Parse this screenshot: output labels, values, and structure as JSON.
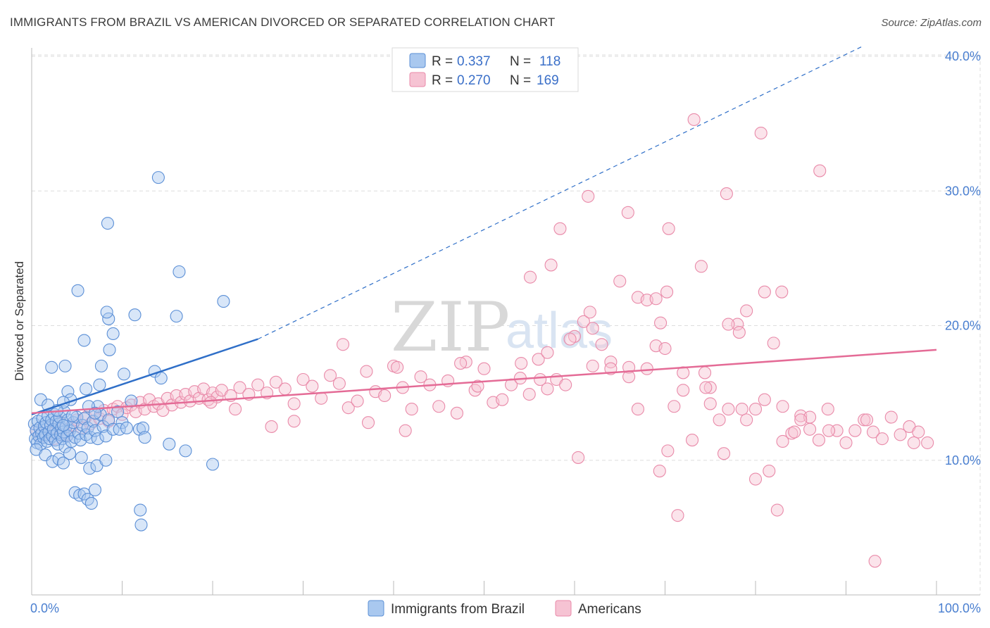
{
  "header": {
    "title": "IMMIGRANTS FROM BRAZIL VS AMERICAN DIVORCED OR SEPARATED CORRELATION CHART",
    "source": "Source: ZipAtlas.com"
  },
  "watermark": {
    "zip": "ZIP",
    "atlas": "atlas"
  },
  "legend": {
    "r_label": "R =",
    "n_label": "N =",
    "rows": [
      {
        "r": "0.337",
        "n": "118"
      },
      {
        "r": "0.270",
        "n": "169"
      }
    ]
  },
  "colors": {
    "brazil_fill": "#a9c8ef",
    "brazil_stroke": "#5b8fd6",
    "brazil_line": "#2f6fc8",
    "americans_fill": "#f6c3d3",
    "americans_stroke": "#e98aa9",
    "americans_line": "#e46b96",
    "tick_text": "#4a7fd0",
    "grid": "#dddddd"
  },
  "chart_data": {
    "type": "scatter",
    "title": "IMMIGRANTS FROM BRAZIL VS AMERICAN DIVORCED OR SEPARATED CORRELATION CHART",
    "xlabel": "",
    "ylabel": "Divorced or Separated",
    "xlim": [
      0,
      100
    ],
    "ylim": [
      0,
      40
    ],
    "x_tick_labels": [
      "0.0%",
      "100.0%"
    ],
    "y_ticks": [
      10,
      20,
      30,
      40
    ],
    "y_tick_labels": [
      "10.0%",
      "20.0%",
      "30.0%",
      "40.0%"
    ],
    "grid": true,
    "legend_position": "top-center",
    "series": [
      {
        "name": "Immigrants from Brazil",
        "r": 0.337,
        "n": 118,
        "trend": {
          "x": [
            0,
            25
          ],
          "y": [
            13.4,
            19.0
          ],
          "dashed_extension": [
            25,
            92
          ],
          "dashed_y": [
            19.0,
            40.8
          ]
        },
        "points": [
          [
            0.3,
            12.7
          ],
          [
            0.4,
            11.6
          ],
          [
            0.5,
            12.2
          ],
          [
            0.6,
            11.3
          ],
          [
            0.7,
            12.9
          ],
          [
            0.8,
            11.8
          ],
          [
            0.9,
            12.4
          ],
          [
            1.0,
            11.2
          ],
          [
            1.1,
            12.0
          ],
          [
            1.2,
            13.1
          ],
          [
            1.3,
            11.7
          ],
          [
            1.4,
            12.5
          ],
          [
            1.5,
            11.9
          ],
          [
            1.6,
            12.8
          ],
          [
            1.7,
            11.4
          ],
          [
            1.8,
            13.3
          ],
          [
            1.9,
            12.1
          ],
          [
            2.0,
            11.6
          ],
          [
            2.1,
            12.6
          ],
          [
            2.2,
            13.0
          ],
          [
            2.3,
            11.8
          ],
          [
            2.4,
            12.3
          ],
          [
            2.5,
            13.4
          ],
          [
            2.6,
            11.5
          ],
          [
            2.7,
            12.9
          ],
          [
            2.8,
            12.0
          ],
          [
            2.9,
            11.2
          ],
          [
            3.0,
            12.7
          ],
          [
            3.1,
            13.2
          ],
          [
            3.2,
            11.9
          ],
          [
            3.3,
            12.4
          ],
          [
            3.4,
            11.6
          ],
          [
            3.5,
            12.1
          ],
          [
            3.6,
            13.6
          ],
          [
            3.7,
            11.0
          ],
          [
            3.8,
            12.5
          ],
          [
            3.9,
            11.8
          ],
          [
            4.0,
            13.0
          ],
          [
            4.2,
            12.2
          ],
          [
            4.4,
            11.4
          ],
          [
            4.6,
            12.8
          ],
          [
            4.8,
            11.7
          ],
          [
            5.0,
            13.2
          ],
          [
            5.2,
            12.0
          ],
          [
            5.4,
            11.5
          ],
          [
            5.6,
            12.6
          ],
          [
            5.8,
            13.1
          ],
          [
            6.0,
            11.9
          ],
          [
            6.2,
            12.4
          ],
          [
            6.5,
            11.7
          ],
          [
            6.8,
            12.9
          ],
          [
            7.0,
            12.2
          ],
          [
            7.3,
            11.6
          ],
          [
            7.6,
            13.4
          ],
          [
            7.9,
            12.5
          ],
          [
            8.2,
            11.8
          ],
          [
            8.5,
            13.0
          ],
          [
            9.0,
            12.3
          ],
          [
            9.5,
            13.6
          ],
          [
            10.0,
            12.8
          ],
          [
            0.5,
            10.8
          ],
          [
            1.5,
            10.4
          ],
          [
            2.3,
            9.9
          ],
          [
            3.0,
            10.1
          ],
          [
            3.5,
            9.8
          ],
          [
            4.2,
            10.5
          ],
          [
            5.5,
            10.2
          ],
          [
            6.4,
            9.4
          ],
          [
            7.2,
            9.6
          ],
          [
            8.2,
            10.0
          ],
          [
            4.8,
            7.6
          ],
          [
            5.3,
            7.4
          ],
          [
            5.8,
            7.5
          ],
          [
            6.2,
            7.1
          ],
          [
            6.6,
            6.8
          ],
          [
            7.0,
            7.8
          ],
          [
            12.0,
            6.3
          ],
          [
            12.1,
            5.2
          ],
          [
            3.5,
            12.6
          ],
          [
            1.0,
            14.5
          ],
          [
            2.2,
            16.9
          ],
          [
            3.7,
            17.0
          ],
          [
            4.0,
            15.1
          ],
          [
            4.3,
            14.5
          ],
          [
            5.8,
            18.9
          ],
          [
            6.0,
            15.3
          ],
          [
            7.3,
            14.0
          ],
          [
            7.5,
            15.6
          ],
          [
            7.7,
            17.0
          ],
          [
            8.5,
            20.5
          ],
          [
            8.3,
            21.0
          ],
          [
            8.6,
            18.2
          ],
          [
            9.0,
            19.4
          ],
          [
            10.2,
            16.4
          ],
          [
            11.4,
            20.8
          ],
          [
            13.6,
            16.6
          ],
          [
            14.3,
            16.1
          ],
          [
            14.0,
            31.0
          ],
          [
            16.3,
            24.0
          ],
          [
            16.0,
            20.7
          ],
          [
            21.2,
            21.8
          ],
          [
            20.0,
            9.7
          ],
          [
            5.1,
            22.6
          ],
          [
            8.4,
            27.6
          ],
          [
            3.5,
            14.3
          ],
          [
            4.5,
            13.3
          ],
          [
            6.3,
            14.0
          ],
          [
            7.0,
            13.5
          ],
          [
            9.7,
            12.3
          ],
          [
            10.5,
            12.4
          ],
          [
            11.0,
            14.4
          ],
          [
            11.9,
            12.3
          ],
          [
            12.3,
            12.4
          ],
          [
            12.5,
            11.7
          ],
          [
            15.2,
            11.2
          ],
          [
            17.0,
            10.7
          ],
          [
            2.8,
            13.7
          ],
          [
            1.8,
            14.1
          ]
        ]
      },
      {
        "name": "Americans",
        "r": 0.27,
        "n": 169,
        "trend": {
          "x": [
            0,
            100
          ],
          "y": [
            13.5,
            18.2
          ]
        },
        "points": [
          [
            0.5,
            12.2
          ],
          [
            1.0,
            11.8
          ],
          [
            1.5,
            12.5
          ],
          [
            2.0,
            12.0
          ],
          [
            2.5,
            11.6
          ],
          [
            3.0,
            12.9
          ],
          [
            3.5,
            12.3
          ],
          [
            4.0,
            11.9
          ],
          [
            4.5,
            12.6
          ],
          [
            5.0,
            13.0
          ],
          [
            5.5,
            12.4
          ],
          [
            6.0,
            13.2
          ],
          [
            6.5,
            12.7
          ],
          [
            7.0,
            13.5
          ],
          [
            7.5,
            13.1
          ],
          [
            8.0,
            13.7
          ],
          [
            8.5,
            12.9
          ],
          [
            9.0,
            13.8
          ],
          [
            9.5,
            14.0
          ],
          [
            10.0,
            13.4
          ],
          [
            10.5,
            13.9
          ],
          [
            11.0,
            14.1
          ],
          [
            11.5,
            13.6
          ],
          [
            12.0,
            14.3
          ],
          [
            12.5,
            13.8
          ],
          [
            13.0,
            14.5
          ],
          [
            13.5,
            14.0
          ],
          [
            14.0,
            14.2
          ],
          [
            14.5,
            13.7
          ],
          [
            15.0,
            14.6
          ],
          [
            15.5,
            14.1
          ],
          [
            16.0,
            14.8
          ],
          [
            16.5,
            14.3
          ],
          [
            17.0,
            14.9
          ],
          [
            17.5,
            14.4
          ],
          [
            18.0,
            15.1
          ],
          [
            18.5,
            14.6
          ],
          [
            19.0,
            15.3
          ],
          [
            19.5,
            14.5
          ],
          [
            20.0,
            15.0
          ],
          [
            20.5,
            14.7
          ],
          [
            21.0,
            15.2
          ],
          [
            22.0,
            14.8
          ],
          [
            23.0,
            15.4
          ],
          [
            24.0,
            14.9
          ],
          [
            25.0,
            15.6
          ],
          [
            26.0,
            15.0
          ],
          [
            27.0,
            15.8
          ],
          [
            28.0,
            15.3
          ],
          [
            29.0,
            14.2
          ],
          [
            30.0,
            16.0
          ],
          [
            31.0,
            15.5
          ],
          [
            32.0,
            14.6
          ],
          [
            33.0,
            16.3
          ],
          [
            34.0,
            15.7
          ],
          [
            35.0,
            13.9
          ],
          [
            36.0,
            14.4
          ],
          [
            37.0,
            16.6
          ],
          [
            38.0,
            15.1
          ],
          [
            39.0,
            14.8
          ],
          [
            40.0,
            17.0
          ],
          [
            41.0,
            15.4
          ],
          [
            42.0,
            13.8
          ],
          [
            43.0,
            16.2
          ],
          [
            44.0,
            15.6
          ],
          [
            45.0,
            14.0
          ],
          [
            46.0,
            15.9
          ],
          [
            47.0,
            13.5
          ],
          [
            48.0,
            17.3
          ],
          [
            49.0,
            15.2
          ],
          [
            50.0,
            16.8
          ],
          [
            51.0,
            14.3
          ],
          [
            52.0,
            14.5
          ],
          [
            53.0,
            15.6
          ],
          [
            54.0,
            16.1
          ],
          [
            55.0,
            14.9
          ],
          [
            56.0,
            17.5
          ],
          [
            57.0,
            15.3
          ],
          [
            58.0,
            16.0
          ],
          [
            59.0,
            15.6
          ],
          [
            60.0,
            19.2
          ],
          [
            61.0,
            20.3
          ],
          [
            62.0,
            17.0
          ],
          [
            63.0,
            18.6
          ],
          [
            64.0,
            17.3
          ],
          [
            65.0,
            23.3
          ],
          [
            66.0,
            16.9
          ],
          [
            67.0,
            22.1
          ],
          [
            68.0,
            21.9
          ],
          [
            69.0,
            18.5
          ],
          [
            70.0,
            18.3
          ],
          [
            71.0,
            14.0
          ],
          [
            72.0,
            16.5
          ],
          [
            73.0,
            11.5
          ],
          [
            74.0,
            24.4
          ],
          [
            75.0,
            15.4
          ],
          [
            76.0,
            13.0
          ],
          [
            77.0,
            13.8
          ],
          [
            78.0,
            20.1
          ],
          [
            79.0,
            21.1
          ],
          [
            80.0,
            13.8
          ],
          [
            81.0,
            22.5
          ],
          [
            82.0,
            18.7
          ],
          [
            83.0,
            11.4
          ],
          [
            84.0,
            12.0
          ],
          [
            85.0,
            13.3
          ],
          [
            86.0,
            12.3
          ],
          [
            87.0,
            11.5
          ],
          [
            88.0,
            13.8
          ],
          [
            89.0,
            12.2
          ],
          [
            90.0,
            11.3
          ],
          [
            91.0,
            12.2
          ],
          [
            92.0,
            13.0
          ],
          [
            93.0,
            12.1
          ],
          [
            94.0,
            11.6
          ],
          [
            95.0,
            13.2
          ],
          [
            96.0,
            11.9
          ],
          [
            97.0,
            12.5
          ],
          [
            98.0,
            12.1
          ],
          [
            99.0,
            11.3
          ],
          [
            73.2,
            35.3
          ],
          [
            80.6,
            34.3
          ],
          [
            87.1,
            31.5
          ],
          [
            76.8,
            29.8
          ],
          [
            61.5,
            29.6
          ],
          [
            65.9,
            28.4
          ],
          [
            70.4,
            27.2
          ],
          [
            58.4,
            27.2
          ],
          [
            57.4,
            24.5
          ],
          [
            55.1,
            23.6
          ],
          [
            70.2,
            22.5
          ],
          [
            69.0,
            22.0
          ],
          [
            82.9,
            22.5
          ],
          [
            61.7,
            21.0
          ],
          [
            77.0,
            20.1
          ],
          [
            78.2,
            19.5
          ],
          [
            69.5,
            20.2
          ],
          [
            62.0,
            19.8
          ],
          [
            59.5,
            19.0
          ],
          [
            57.0,
            18.0
          ],
          [
            74.4,
            16.5
          ],
          [
            74.5,
            15.4
          ],
          [
            78.5,
            13.8
          ],
          [
            69.4,
            9.2
          ],
          [
            70.3,
            10.7
          ],
          [
            71.4,
            5.9
          ],
          [
            76.5,
            10.5
          ],
          [
            80.0,
            8.6
          ],
          [
            81.5,
            9.2
          ],
          [
            82.4,
            6.3
          ],
          [
            93.2,
            2.5
          ],
          [
            92.3,
            13.0
          ],
          [
            97.5,
            11.3
          ],
          [
            88.1,
            12.2
          ],
          [
            84.3,
            12.1
          ],
          [
            86.0,
            13.2
          ],
          [
            60.4,
            10.2
          ],
          [
            41.3,
            12.2
          ],
          [
            37.2,
            12.8
          ],
          [
            29.0,
            12.9
          ],
          [
            26.5,
            12.5
          ],
          [
            22.5,
            13.8
          ],
          [
            19.8,
            14.3
          ],
          [
            34.4,
            18.6
          ],
          [
            40.4,
            16.9
          ],
          [
            47.4,
            17.2
          ],
          [
            49.3,
            15.5
          ],
          [
            54.1,
            17.2
          ],
          [
            56.2,
            16.0
          ],
          [
            64.0,
            16.8
          ],
          [
            66.0,
            16.2
          ],
          [
            68.0,
            16.8
          ],
          [
            72.0,
            15.2
          ],
          [
            75.0,
            14.2
          ],
          [
            79.0,
            13.0
          ],
          [
            81.0,
            14.5
          ],
          [
            83.0,
            14.0
          ],
          [
            85.0,
            13.0
          ],
          [
            67.0,
            13.8
          ]
        ]
      }
    ]
  },
  "bottom_legend": {
    "items": [
      "Immigrants from Brazil",
      "Americans"
    ]
  }
}
